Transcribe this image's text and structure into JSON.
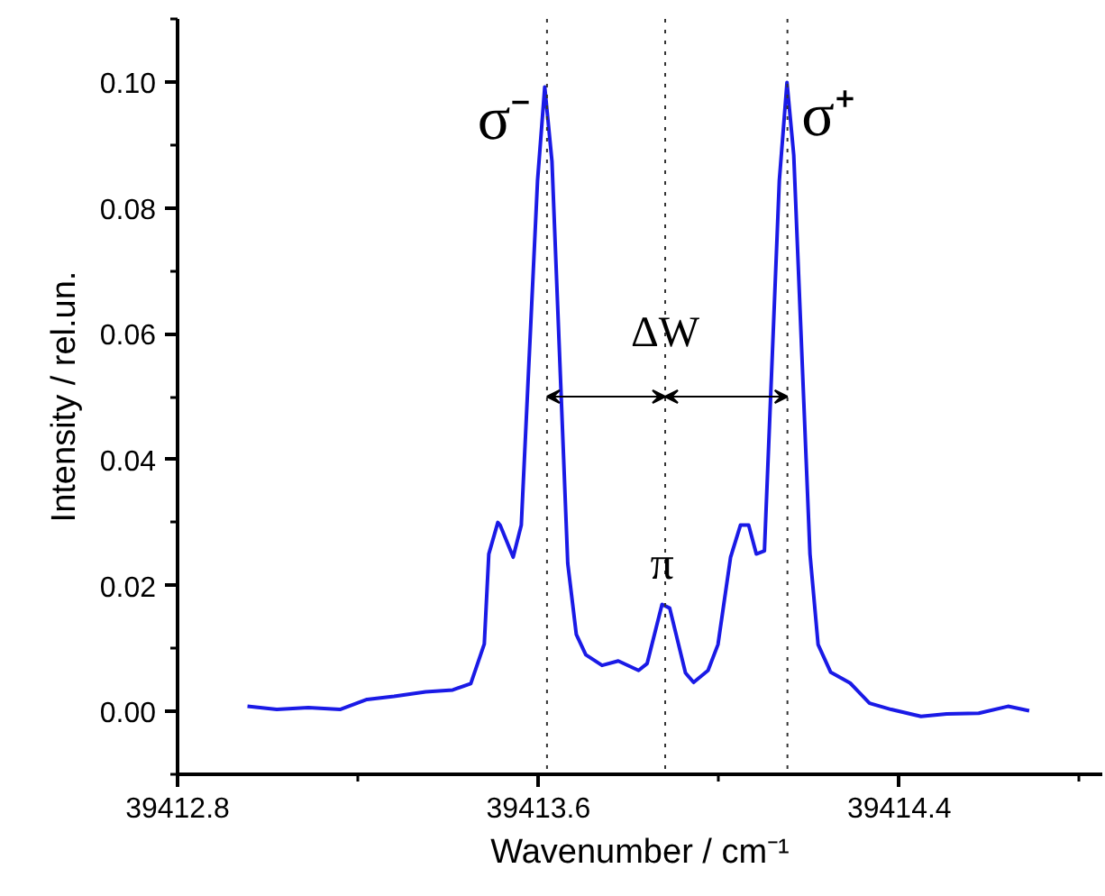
{
  "chart_data": {
    "type": "line",
    "xlabel": "Wavenumber / cm⁻¹",
    "ylabel": "Intensity / rel.un.",
    "xlim": [
      39412.8,
      39414.85
    ],
    "xticks": [
      39412.8,
      39413.6,
      39414.4
    ],
    "ylim": [
      -0.01,
      0.11
    ],
    "yticks": [
      {
        "value": 0,
        "label": "0.00"
      },
      {
        "value": 0.02,
        "label": "0.02"
      },
      {
        "value": 0.04,
        "label": "0.04"
      },
      {
        "value": 0.06,
        "label": "0.06"
      },
      {
        "value": 0.08,
        "label": "0.08"
      },
      {
        "value": 0.1,
        "label": "0.10"
      }
    ],
    "grid": false,
    "marker": "none",
    "line_style": "solid",
    "series": [
      {
        "color": "#1a1ae6",
        "x": [
          39412.955,
          39413.02,
          39413.09,
          39413.16,
          39413.22,
          39413.28,
          39413.35,
          39413.41,
          39413.45,
          39413.48,
          39413.49,
          39413.51,
          39413.515,
          39413.544,
          39413.562,
          39413.598,
          39413.614,
          39413.63,
          39413.665,
          39413.684,
          39413.705,
          39413.741,
          39413.777,
          39413.822,
          39413.841,
          39413.874,
          39413.891,
          39413.926,
          39413.944,
          39413.976,
          39413.998,
          39414.026,
          39414.048,
          39414.066,
          39414.083,
          39414.101,
          39414.134,
          39414.151,
          39414.166,
          39414.202,
          39414.22,
          39414.248,
          39414.291,
          39414.334,
          39414.382,
          39414.448,
          39414.505,
          39414.576,
          39414.641,
          39414.688
        ],
        "values": [
          0.0008,
          0.0003,
          0.0006,
          0.0003,
          0.0019,
          0.0024,
          0.0031,
          0.0034,
          0.0044,
          0.0107,
          0.025,
          0.03,
          0.0296,
          0.0245,
          0.0296,
          0.0843,
          0.0992,
          0.0874,
          0.0235,
          0.0122,
          0.009,
          0.0073,
          0.008,
          0.0065,
          0.0076,
          0.017,
          0.0164,
          0.0061,
          0.0046,
          0.0065,
          0.0106,
          0.0245,
          0.0296,
          0.0296,
          0.025,
          0.0255,
          0.0843,
          0.0999,
          0.0884,
          0.025,
          0.0106,
          0.0062,
          0.0045,
          0.0013,
          0.0003,
          -0.0008,
          -0.0004,
          -0.0003,
          0.0008,
          0.0001
        ]
      }
    ],
    "ref_lines": [
      {
        "axis": "x",
        "value": 39413.619,
        "color": "#333333",
        "line_style": "dotted"
      },
      {
        "axis": "x",
        "value": 39413.881,
        "color": "#333333",
        "line_style": "dotted"
      },
      {
        "axis": "x",
        "value": 39414.152,
        "color": "#333333",
        "line_style": "dotted"
      }
    ],
    "annotations": [
      {
        "text": "σ⁻",
        "x": 39413.614,
        "y": 0.0992
      },
      {
        "text": "σ⁺",
        "x": 39414.151,
        "y": 0.0999
      },
      {
        "text": "ΔW",
        "x": 39413.881,
        "y": 0.05
      },
      {
        "text": "π",
        "x": 39413.874,
        "y": 0.017
      }
    ]
  }
}
